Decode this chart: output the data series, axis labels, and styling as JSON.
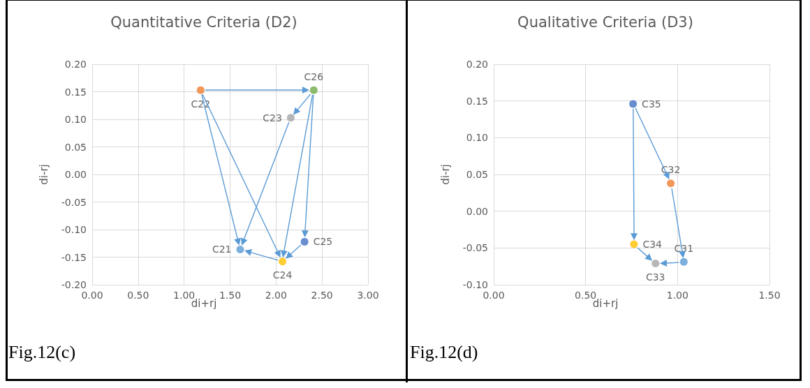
{
  "chart_data": [
    {
      "type": "scatter",
      "title": "Quantitative Criteria (D2)",
      "xlabel": "di+rj",
      "ylabel": "di-rj",
      "annotations": [
        "Fig.12(c)"
      ],
      "marker": "circle",
      "grid": true,
      "xlim": [
        0,
        3
      ],
      "xticks": [
        {
          "value": 0,
          "label": "0.00"
        },
        {
          "value": 0.5,
          "label": "0.50"
        },
        {
          "value": 1,
          "label": "1.00"
        },
        {
          "value": 1.5,
          "label": "1.50"
        },
        {
          "value": 2,
          "label": "2.00"
        },
        {
          "value": 2.5,
          "label": "2.50"
        },
        {
          "value": 3,
          "label": "3.00"
        }
      ],
      "ylim": [
        -0.2,
        0.2
      ],
      "yticks": [
        {
          "value": -0.2,
          "label": "-0.20"
        },
        {
          "value": -0.15,
          "label": "-0.15"
        },
        {
          "value": -0.1,
          "label": "-0.10"
        },
        {
          "value": -0.05,
          "label": "-0.05"
        },
        {
          "value": 0,
          "label": "0.00"
        },
        {
          "value": 0.05,
          "label": "0.05"
        },
        {
          "value": 0.1,
          "label": "0.10"
        },
        {
          "value": 0.15,
          "label": "0.15"
        },
        {
          "value": 0.2,
          "label": "0.20"
        }
      ],
      "series": [
        {
          "name": "C21",
          "color": "#5b9bd5",
          "x": [
            1.61
          ],
          "values": [
            -0.136
          ]
        },
        {
          "name": "C22",
          "color": "#ed7d31",
          "x": [
            1.18
          ],
          "values": [
            0.153
          ]
        },
        {
          "name": "C23",
          "color": "#a5a5a5",
          "x": [
            2.16
          ],
          "values": [
            0.103
          ]
        },
        {
          "name": "C24",
          "color": "#ffc000",
          "x": [
            2.07
          ],
          "values": [
            -0.158
          ]
        },
        {
          "name": "C25",
          "color": "#4472c4",
          "x": [
            2.31
          ],
          "values": [
            -0.122
          ]
        },
        {
          "name": "C26",
          "color": "#70ad47",
          "x": [
            2.41
          ],
          "values": [
            0.153
          ]
        }
      ]
    },
    {
      "type": "scatter",
      "title": "Qualitative Criteria (D3)",
      "xlabel": "di+rj",
      "ylabel": "di-rj",
      "annotations": [
        "Fig.12(d)"
      ],
      "marker": "circle",
      "grid": true,
      "xlim": [
        0,
        1.5
      ],
      "xticks": [
        {
          "value": 0,
          "label": "0.00"
        },
        {
          "value": 0.5,
          "label": "0.50"
        },
        {
          "value": 1,
          "label": "1.00"
        },
        {
          "value": 1.5,
          "label": "1.50"
        }
      ],
      "ylim": [
        -0.1,
        0.2
      ],
      "yticks": [
        {
          "value": -0.1,
          "label": "-0.10"
        },
        {
          "value": -0.05,
          "label": "-0.05"
        },
        {
          "value": 0,
          "label": "0.00"
        },
        {
          "value": 0.05,
          "label": "0.05"
        },
        {
          "value": 0.1,
          "label": "0.10"
        },
        {
          "value": 0.15,
          "label": "0.15"
        },
        {
          "value": 0.2,
          "label": "0.20"
        }
      ],
      "series": [
        {
          "name": "C31",
          "color": "#5b9bd5",
          "x": [
            1.034
          ],
          "values": [
            -0.069
          ]
        },
        {
          "name": "C32",
          "color": "#ed7d31",
          "x": [
            0.963
          ],
          "values": [
            0.038
          ]
        },
        {
          "name": "C33",
          "color": "#a5a5a5",
          "x": [
            0.88
          ],
          "values": [
            -0.071
          ]
        },
        {
          "name": "C34",
          "color": "#ffc000",
          "x": [
            0.763
          ],
          "values": [
            -0.045
          ]
        },
        {
          "name": "C35",
          "color": "#4472c4",
          "x": [
            0.758
          ],
          "values": [
            0.146
          ]
        }
      ]
    }
  ]
}
